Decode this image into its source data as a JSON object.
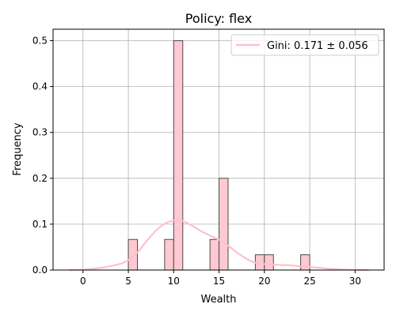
{
  "chart_data": {
    "type": "bar",
    "title": "Policy: flex",
    "xlabel": "Wealth",
    "ylabel": "Frequency",
    "xlim": [
      -3.3,
      33.2
    ],
    "ylim": [
      0,
      0.525
    ],
    "x_ticks": [
      0,
      5,
      10,
      15,
      20,
      25,
      30
    ],
    "y_ticks": [
      0.0,
      0.1,
      0.2,
      0.3,
      0.4,
      0.5
    ],
    "x_tick_labels": [
      "0",
      "5",
      "10",
      "15",
      "20",
      "25",
      "30"
    ],
    "y_tick_labels": [
      "0.0",
      "0.1",
      "0.2",
      "0.3",
      "0.4",
      "0.5"
    ],
    "grid": true,
    "bins": [
      {
        "x0": 5.0,
        "x1": 6.0,
        "value": 0.0667
      },
      {
        "x0": 9.0,
        "x1": 10.0,
        "value": 0.0667
      },
      {
        "x0": 10.0,
        "x1": 11.0,
        "value": 0.5
      },
      {
        "x0": 14.0,
        "x1": 15.0,
        "value": 0.0667
      },
      {
        "x0": 15.0,
        "x1": 16.0,
        "value": 0.2
      },
      {
        "x0": 19.0,
        "x1": 20.0,
        "value": 0.0333
      },
      {
        "x0": 20.0,
        "x1": 21.0,
        "value": 0.0333
      },
      {
        "x0": 24.0,
        "x1": 25.0,
        "value": 0.0333
      }
    ],
    "kde": {
      "x": [
        -1.5,
        0,
        2,
        4,
        5,
        6,
        7,
        8,
        9,
        10,
        10.5,
        11,
        12,
        13,
        14,
        15,
        16,
        17,
        18,
        19,
        20,
        21,
        22,
        23,
        24,
        25,
        26,
        27,
        28,
        29,
        30,
        31.5
      ],
      "y": [
        0.0,
        0.001,
        0.005,
        0.013,
        0.022,
        0.038,
        0.063,
        0.085,
        0.101,
        0.108,
        0.109,
        0.107,
        0.097,
        0.085,
        0.075,
        0.066,
        0.053,
        0.038,
        0.025,
        0.016,
        0.013,
        0.012,
        0.011,
        0.01,
        0.008,
        0.007,
        0.005,
        0.003,
        0.002,
        0.001,
        0.0005,
        0.0
      ]
    },
    "legend": {
      "placement": "top-right",
      "entries": [
        {
          "label": "Gini: 0.171 ± 0.056"
        }
      ]
    },
    "colors": {
      "bar_fill": "#ffc9d1",
      "bar_edge": "#4a4a4a",
      "kde_line": "#ffc0cb",
      "grid": "#b0b0b0",
      "axis": "#000000"
    }
  }
}
